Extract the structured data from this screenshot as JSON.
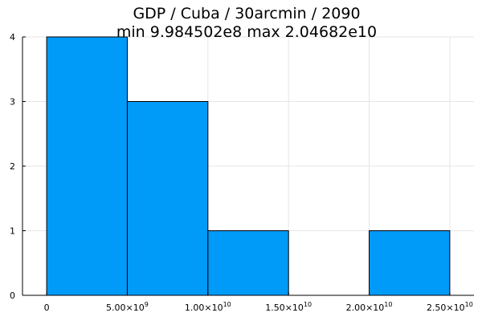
{
  "chart_data": {
    "type": "bar",
    "title_lines": [
      "GDP / Cuba / 30arcmin / 2090",
      "min 9.984502e8  max 2.04682e10"
    ],
    "bin_edges": [
      0,
      5000000000.0,
      10000000000.0,
      15000000000.0,
      20000000000.0,
      25000000000.0
    ],
    "counts": [
      4,
      3,
      1,
      0,
      1
    ],
    "xlim": [
      -1500000000.0,
      26500000000.0
    ],
    "ylim": [
      0,
      4
    ],
    "x_ticks": [
      {
        "value": 0,
        "mantissa": "0",
        "exp": ""
      },
      {
        "value": 5000000000.0,
        "mantissa": "5.00×10",
        "exp": "9"
      },
      {
        "value": 10000000000.0,
        "mantissa": "1.00×10",
        "exp": "10"
      },
      {
        "value": 15000000000.0,
        "mantissa": "1.50×10",
        "exp": "10"
      },
      {
        "value": 20000000000.0,
        "mantissa": "2.00×10",
        "exp": "10"
      },
      {
        "value": 25000000000.0,
        "mantissa": "2.50×10",
        "exp": "10"
      }
    ],
    "y_ticks": [
      0,
      1,
      2,
      3,
      4
    ],
    "grid": true,
    "legend": "none",
    "bar_color": "#009af9"
  }
}
